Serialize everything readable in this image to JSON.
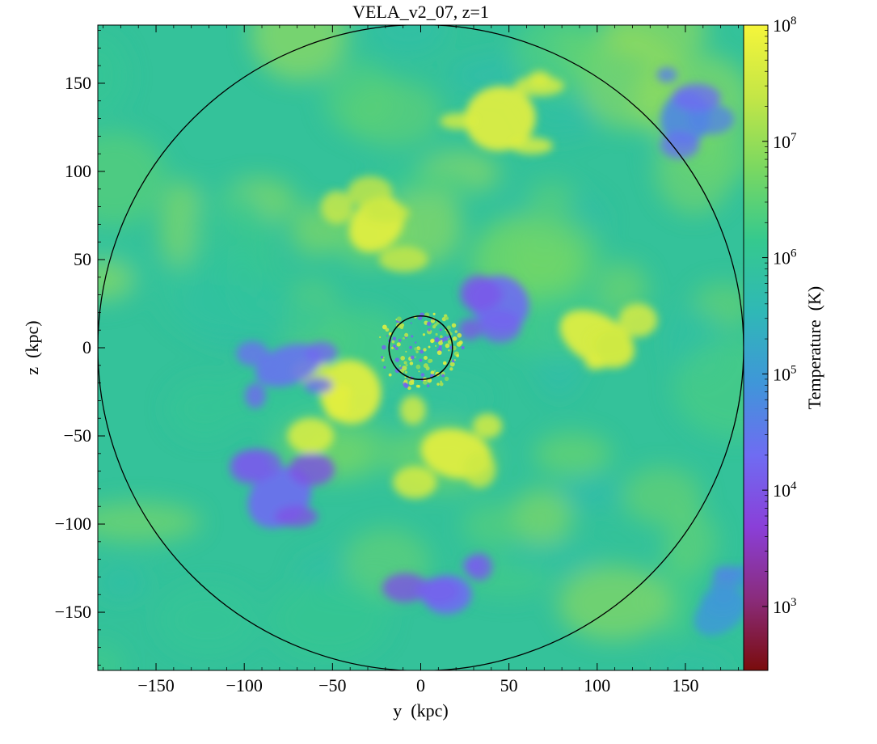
{
  "chart_data": {
    "type": "heatmap",
    "title": "VELA_v2_07, z=1",
    "xlabel": "y  (kpc)",
    "ylabel": "z  (kpc)",
    "xlim": [
      -183,
      183
    ],
    "ylim": [
      -183,
      183
    ],
    "xticks": [
      -150,
      -100,
      -50,
      0,
      50,
      100,
      150
    ],
    "xtick_labels": [
      "−150",
      "−100",
      "−50",
      "0",
      "50",
      "100",
      "150"
    ],
    "yticks": [
      -150,
      -100,
      -50,
      0,
      50,
      100,
      150
    ],
    "ytick_labels": [
      "−150",
      "−100",
      "−50",
      "0",
      "50",
      "100",
      "150"
    ],
    "grid": false,
    "circles": [
      {
        "name": "outer",
        "center": [
          0,
          0
        ],
        "radius": 183
      },
      {
        "name": "inner",
        "center": [
          0,
          0
        ],
        "radius": 18
      }
    ],
    "colorbar": {
      "label": "Temperature  (K)",
      "scale": "log",
      "range_log10": [
        2.45,
        8.0
      ],
      "ticks": [
        {
          "exp": "8",
          "log10": 8
        },
        {
          "exp": "7",
          "log10": 7
        },
        {
          "exp": "6",
          "log10": 6
        },
        {
          "exp": "5",
          "log10": 5
        },
        {
          "exp": "4",
          "log10": 4
        },
        {
          "exp": "3",
          "log10": 3
        }
      ],
      "tick_base": "10",
      "colormap": [
        "#7a0c0c",
        "#8a2c7c",
        "#8a3fd8",
        "#6f6cf2",
        "#3f96d9",
        "#2fb8b6",
        "#35c98e",
        "#7ad861",
        "#c4e646",
        "#f5f53a"
      ]
    },
    "features": [
      {
        "name": "hot-outflow-north",
        "x": -25,
        "y": 70,
        "log10T": 7.8
      },
      {
        "name": "hot-outflow-north-upper",
        "x": 45,
        "y": 130,
        "log10T": 7.8
      },
      {
        "name": "hot-outflow-east",
        "x": 100,
        "y": 5,
        "log10T": 7.8
      },
      {
        "name": "hot-outflow-southwest",
        "x": -40,
        "y": -25,
        "log10T": 7.8
      },
      {
        "name": "hot-outflow-south",
        "x": 20,
        "y": -60,
        "log10T": 7.8
      },
      {
        "name": "cold-stream-southwest",
        "x": -80,
        "y": -85,
        "log10T": 4.3
      },
      {
        "name": "cold-stream-south",
        "x": 15,
        "y": -140,
        "log10T": 4.3
      },
      {
        "name": "cold-stream-east",
        "x": 45,
        "y": 25,
        "log10T": 4.3
      },
      {
        "name": "cold-filament-west",
        "x": -75,
        "y": -10,
        "log10T": 4.4
      },
      {
        "name": "cold-corner-northeast",
        "x": 150,
        "y": 130,
        "log10T": 4.7
      },
      {
        "name": "cool-corner-southeast",
        "x": 170,
        "y": -150,
        "log10T": 5.0
      }
    ]
  }
}
